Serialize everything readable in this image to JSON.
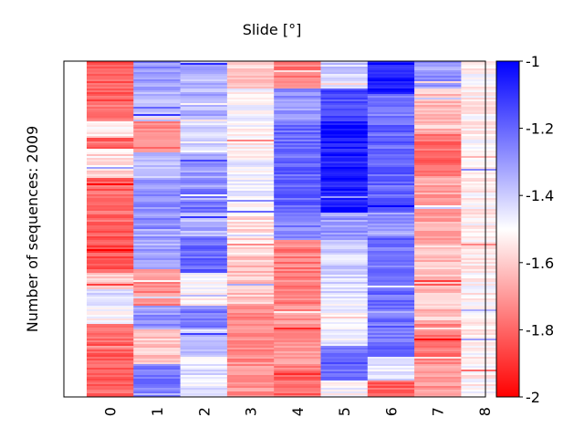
{
  "chart_data": {
    "type": "heatmap",
    "title": "Slide [°]",
    "xlabel": "",
    "ylabel": "Number of sequences: 2009",
    "categories": [
      "0",
      "1",
      "2",
      "3",
      "4",
      "5",
      "6",
      "7",
      "8"
    ],
    "n_rows": 2009,
    "colorscale": {
      "min": -2,
      "max": -1,
      "low_color": "#ff0000",
      "mid_color": "#ffffff",
      "high_color": "#0000ff"
    },
    "colorbar_ticks": [
      "-1",
      "-1.2",
      "-1.4",
      "-1.6",
      "-1.8",
      "-2"
    ],
    "colorbar_tick_values": [
      -1,
      -1.2,
      -1.4,
      -1.6,
      -1.8,
      -2
    ],
    "grid": false,
    "column_bands": [
      [
        [
          0.0,
          0.12,
          -1.82
        ],
        [
          0.12,
          0.18,
          -1.78
        ],
        [
          0.18,
          0.23,
          -1.55
        ],
        [
          0.23,
          0.26,
          -1.8
        ],
        [
          0.26,
          0.35,
          -1.56
        ],
        [
          0.35,
          0.52,
          -1.8
        ],
        [
          0.52,
          0.63,
          -1.84
        ],
        [
          0.63,
          0.68,
          -1.58
        ],
        [
          0.68,
          0.73,
          -1.45
        ],
        [
          0.73,
          0.78,
          -1.52
        ],
        [
          0.78,
          1.0,
          -1.8
        ]
      ],
      [
        [
          0.0,
          0.06,
          -1.28
        ],
        [
          0.06,
          0.13,
          -1.35
        ],
        [
          0.13,
          0.18,
          -1.4
        ],
        [
          0.18,
          0.27,
          -1.74
        ],
        [
          0.27,
          0.35,
          -1.38
        ],
        [
          0.35,
          0.5,
          -1.28
        ],
        [
          0.5,
          0.62,
          -1.32
        ],
        [
          0.62,
          0.73,
          -1.72
        ],
        [
          0.73,
          0.8,
          -1.3
        ],
        [
          0.8,
          0.9,
          -1.6
        ],
        [
          0.9,
          1.0,
          -1.25
        ]
      ],
      [
        [
          0.0,
          0.18,
          -1.35
        ],
        [
          0.18,
          0.27,
          -1.43
        ],
        [
          0.27,
          0.38,
          -1.3
        ],
        [
          0.38,
          0.45,
          -1.22
        ],
        [
          0.45,
          0.52,
          -1.35
        ],
        [
          0.52,
          0.63,
          -1.2
        ],
        [
          0.63,
          0.73,
          -1.5
        ],
        [
          0.73,
          0.8,
          -1.25
        ],
        [
          0.8,
          0.88,
          -1.4
        ],
        [
          0.88,
          1.0,
          -1.45
        ]
      ],
      [
        [
          0.0,
          0.08,
          -1.6
        ],
        [
          0.08,
          0.18,
          -1.5
        ],
        [
          0.18,
          0.3,
          -1.52
        ],
        [
          0.3,
          0.45,
          -1.48
        ],
        [
          0.45,
          0.58,
          -1.56
        ],
        [
          0.58,
          0.73,
          -1.62
        ],
        [
          0.73,
          1.0,
          -1.72
        ]
      ],
      [
        [
          0.0,
          0.08,
          -1.75
        ],
        [
          0.08,
          0.18,
          -1.3
        ],
        [
          0.18,
          0.3,
          -1.22
        ],
        [
          0.3,
          0.45,
          -1.2
        ],
        [
          0.45,
          0.53,
          -1.25
        ],
        [
          0.53,
          0.73,
          -1.75
        ],
        [
          0.73,
          0.92,
          -1.72
        ],
        [
          0.92,
          1.0,
          -1.8
        ]
      ],
      [
        [
          0.0,
          0.08,
          -1.4
        ],
        [
          0.08,
          0.18,
          -1.15
        ],
        [
          0.18,
          0.45,
          -1.05
        ],
        [
          0.45,
          0.53,
          -1.3
        ],
        [
          0.53,
          0.7,
          -1.42
        ],
        [
          0.7,
          0.85,
          -1.48
        ],
        [
          0.85,
          0.95,
          -1.2
        ],
        [
          0.95,
          1.0,
          -1.5
        ]
      ],
      [
        [
          0.0,
          0.1,
          -1.05
        ],
        [
          0.1,
          0.18,
          -1.25
        ],
        [
          0.18,
          0.45,
          -1.2
        ],
        [
          0.45,
          0.52,
          -1.3
        ],
        [
          0.52,
          0.88,
          -1.22
        ],
        [
          0.88,
          0.95,
          -1.45
        ],
        [
          0.95,
          1.0,
          -1.8
        ]
      ],
      [
        [
          0.0,
          0.08,
          -1.3
        ],
        [
          0.08,
          0.22,
          -1.62
        ],
        [
          0.22,
          0.34,
          -1.78
        ],
        [
          0.34,
          0.55,
          -1.68
        ],
        [
          0.55,
          0.78,
          -1.62
        ],
        [
          0.78,
          0.9,
          -1.76
        ],
        [
          0.9,
          1.0,
          -1.7
        ]
      ],
      [
        [
          0.0,
          1.0,
          -1.52
        ]
      ]
    ]
  }
}
